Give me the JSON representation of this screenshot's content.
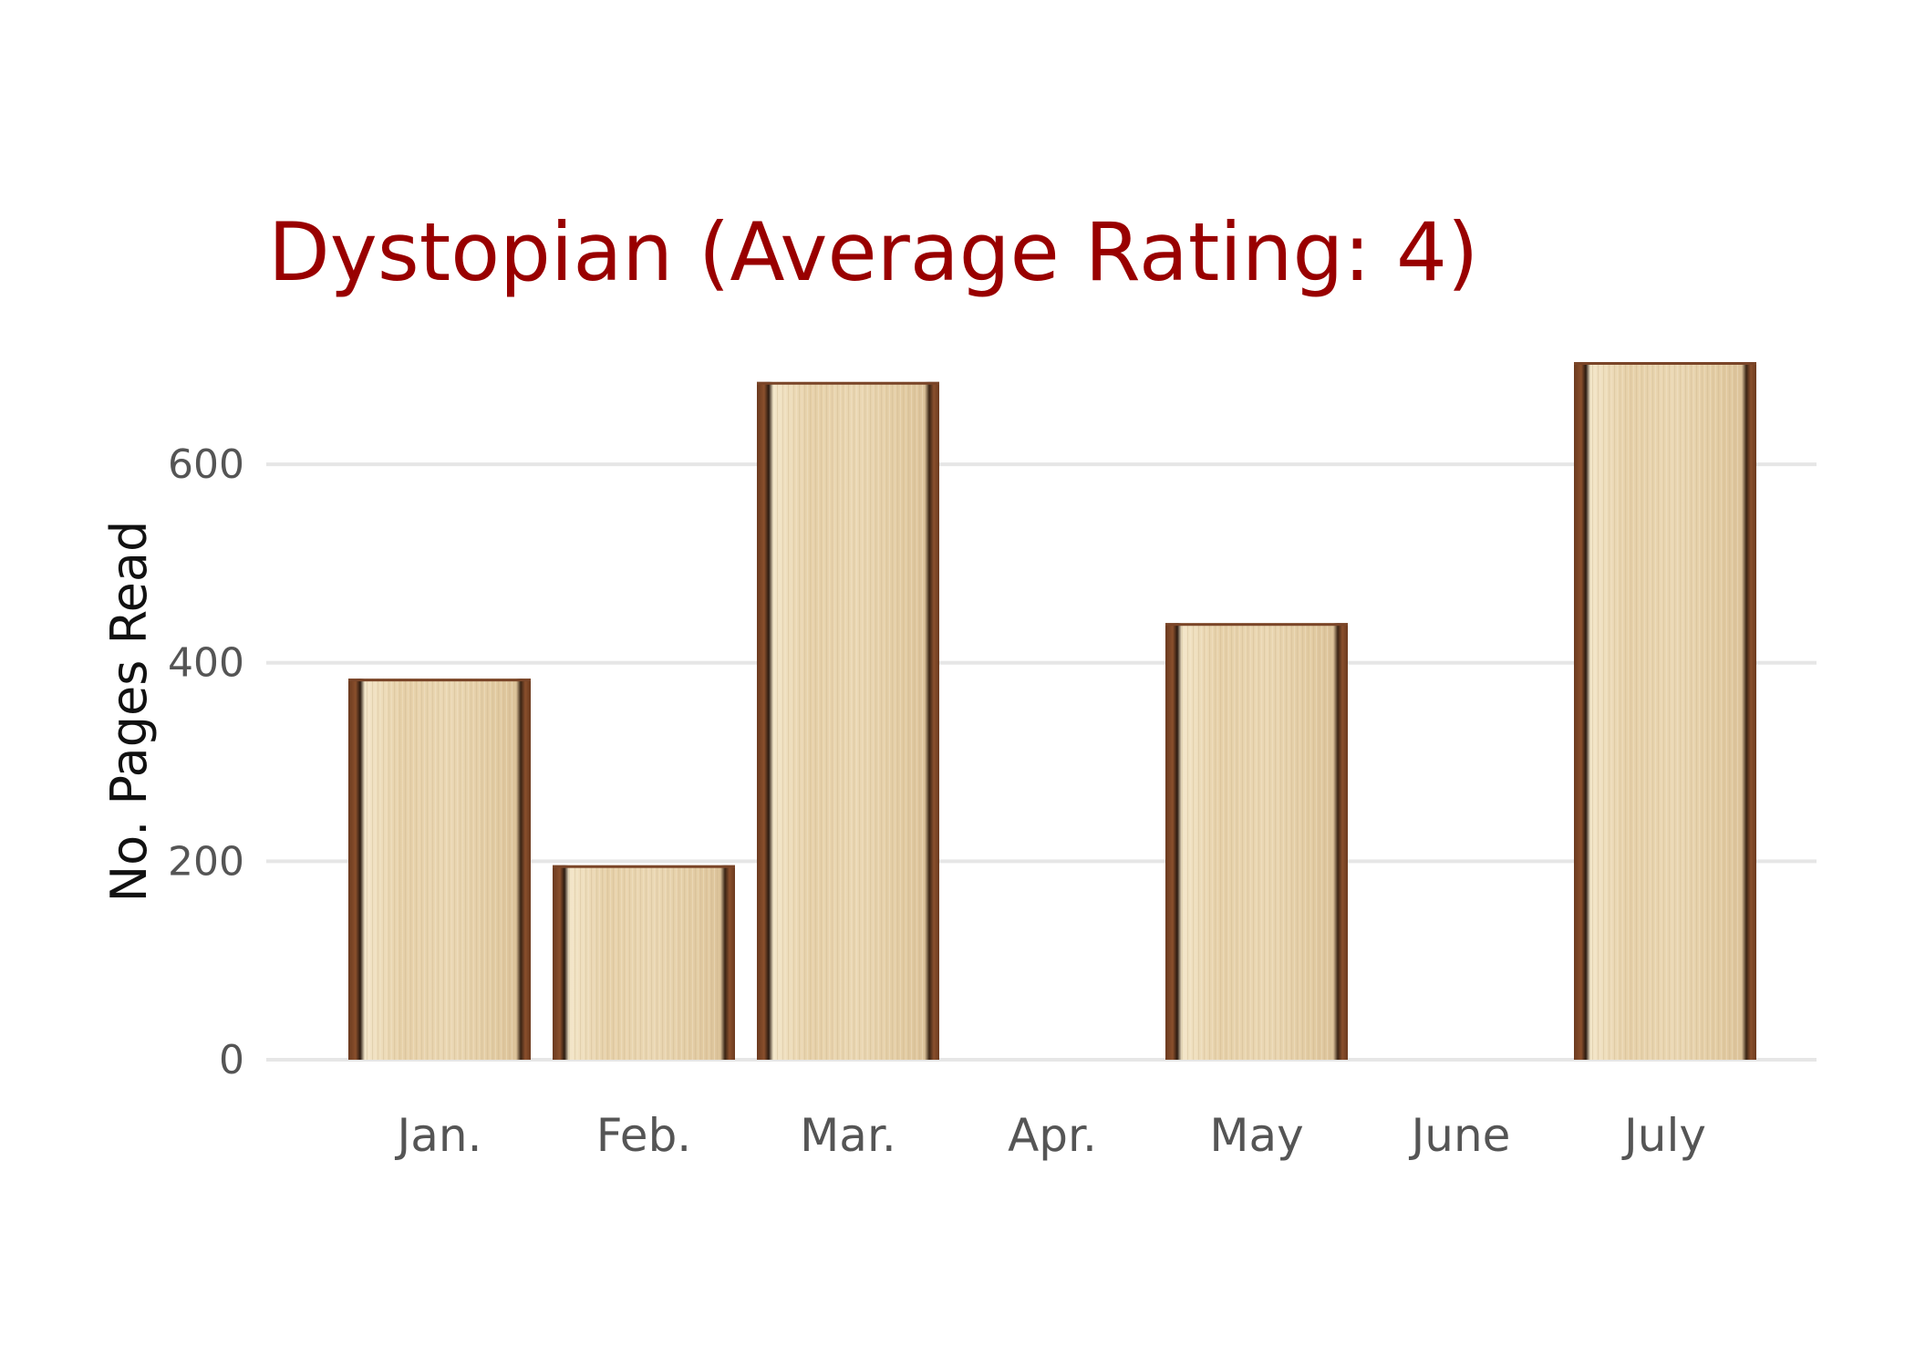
{
  "chart_data": {
    "type": "bar",
    "title": "Dystopian (Average Rating: 4)",
    "ylabel": "No. Pages Read",
    "xlabel": "",
    "categories": [
      "Jan.",
      "Feb.",
      "Mar.",
      "Apr.",
      "May",
      "June",
      "July"
    ],
    "values": [
      384,
      196,
      683,
      0,
      440,
      0,
      703
    ],
    "yticks": [
      0,
      200,
      400,
      600
    ],
    "ytick_labels": [
      "0",
      "200",
      "400",
      "600"
    ],
    "ylim": [
      0,
      703
    ],
    "grid": "horizontal",
    "legend": "none"
  },
  "colors": {
    "title": "#990000",
    "bar_fill": "#e7d3ad",
    "bar_spine": "#7a4528",
    "grid": "#e6e6e6",
    "tick_text": "#555555"
  }
}
